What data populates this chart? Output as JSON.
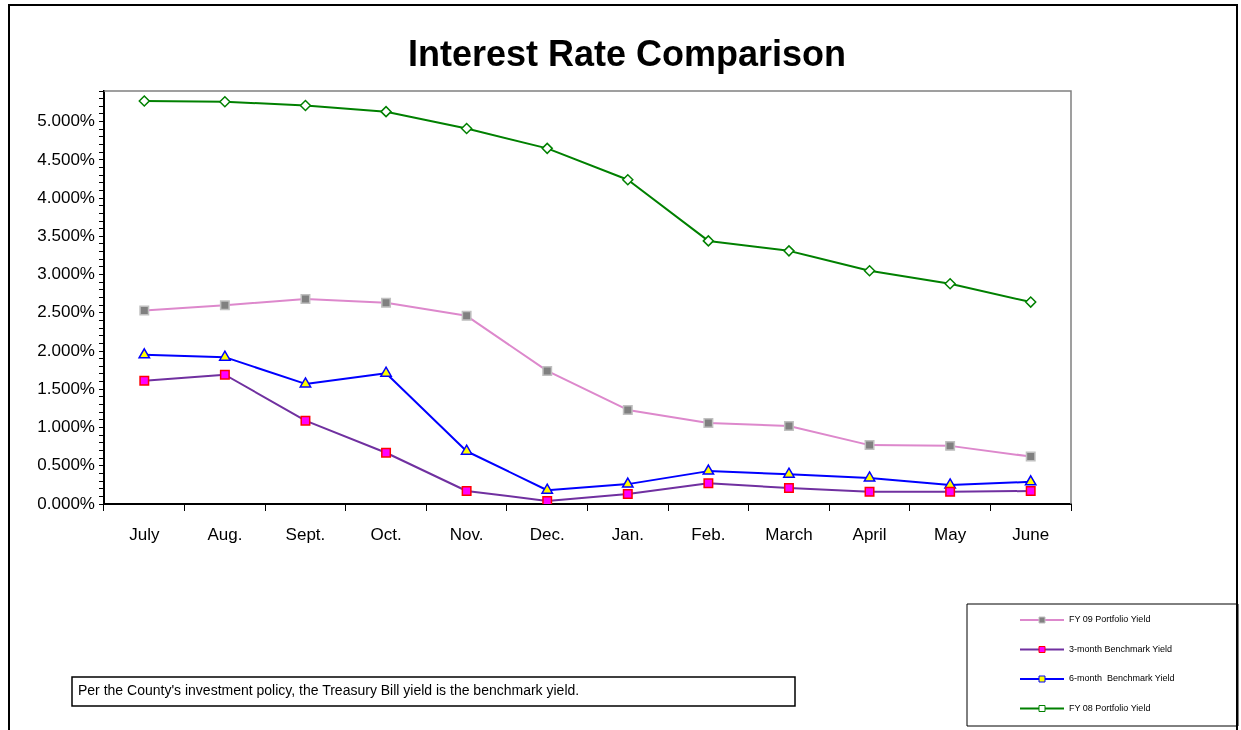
{
  "chart_data": {
    "type": "line",
    "title": "Interest Rate Comparison",
    "categories": [
      "July",
      "Aug.",
      "Sept.",
      "Oct.",
      "Nov.",
      "Dec.",
      "Jan.",
      "Feb.",
      "March",
      "April",
      "May",
      "June"
    ],
    "series": [
      {
        "name": "FY 09 Portfolio Yield",
        "color": "#dd88cc",
        "marker": "square",
        "values": [
          2.53,
          2.6,
          2.68,
          2.63,
          2.46,
          1.74,
          1.23,
          1.06,
          1.02,
          0.77,
          0.76,
          0.62
        ]
      },
      {
        "name": "3-month Benchmark Yield",
        "color": "#7030a0",
        "marker": "square",
        "values": [
          1.61,
          1.69,
          1.09,
          0.67,
          0.17,
          0.04,
          0.13,
          0.27,
          0.21,
          0.16,
          0.16,
          0.17
        ]
      },
      {
        "name": "6-month  Benchmark Yield",
        "color": "#0000ff",
        "marker": "triangle",
        "values": [
          1.95,
          1.92,
          1.57,
          1.71,
          0.69,
          0.18,
          0.26,
          0.43,
          0.39,
          0.34,
          0.25,
          0.29
        ]
      },
      {
        "name": "FY 08 Portfolio Yield",
        "color": "#008000",
        "marker": "diamond",
        "values": [
          5.27,
          5.26,
          5.21,
          5.13,
          4.91,
          4.65,
          4.24,
          3.44,
          3.31,
          3.05,
          2.88,
          2.64
        ]
      }
    ],
    "ylim": [
      0,
      5.4
    ],
    "yticks": [
      {
        "value": 0,
        "label": "0.000%"
      },
      {
        "value": 0.1,
        "label": null
      },
      {
        "value": 0.2,
        "label": null
      },
      {
        "value": 0.3,
        "label": null
      },
      {
        "value": 0.4,
        "label": null
      },
      {
        "value": 0.5,
        "label": "0.500%"
      },
      {
        "value": 0.6,
        "label": null
      },
      {
        "value": 0.7,
        "label": null
      },
      {
        "value": 0.8,
        "label": null
      },
      {
        "value": 0.9,
        "label": null
      },
      {
        "value": 1,
        "label": "1.000%"
      },
      {
        "value": 1.1,
        "label": null
      },
      {
        "value": 1.2,
        "label": null
      },
      {
        "value": 1.3,
        "label": null
      },
      {
        "value": 1.4,
        "label": null
      },
      {
        "value": 1.5,
        "label": "1.500%"
      },
      {
        "value": 1.6,
        "label": null
      },
      {
        "value": 1.7,
        "label": null
      },
      {
        "value": 1.8,
        "label": null
      },
      {
        "value": 1.9,
        "label": null
      },
      {
        "value": 2,
        "label": "2.000%"
      },
      {
        "value": 2.1,
        "label": null
      },
      {
        "value": 2.2,
        "label": null
      },
      {
        "value": 2.3,
        "label": null
      },
      {
        "value": 2.4,
        "label": null
      },
      {
        "value": 2.5,
        "label": "2.500%"
      },
      {
        "value": 2.6,
        "label": null
      },
      {
        "value": 2.7,
        "label": null
      },
      {
        "value": 2.8,
        "label": null
      },
      {
        "value": 2.9,
        "label": null
      },
      {
        "value": 3,
        "label": "3.000%"
      },
      {
        "value": 3.1,
        "label": null
      },
      {
        "value": 3.2,
        "label": null
      },
      {
        "value": 3.3,
        "label": null
      },
      {
        "value": 3.4,
        "label": null
      },
      {
        "value": 3.5,
        "label": "3.500%"
      },
      {
        "value": 3.6,
        "label": null
      },
      {
        "value": 3.7,
        "label": null
      },
      {
        "value": 3.8,
        "label": null
      },
      {
        "value": 3.9,
        "label": null
      },
      {
        "value": 4,
        "label": "4.000%"
      },
      {
        "value": 4.1,
        "label": null
      },
      {
        "value": 4.2,
        "label": null
      },
      {
        "value": 4.3,
        "label": null
      },
      {
        "value": 4.4,
        "label": null
      },
      {
        "value": 4.5,
        "label": "4.500%"
      },
      {
        "value": 4.6,
        "label": null
      },
      {
        "value": 4.7,
        "label": null
      },
      {
        "value": 4.8,
        "label": null
      },
      {
        "value": 4.9,
        "label": null
      },
      {
        "value": 5,
        "label": "5.000%"
      },
      {
        "value": 5.1,
        "label": null
      },
      {
        "value": 5.2,
        "label": null
      },
      {
        "value": 5.3,
        "label": null
      },
      {
        "value": 5.4,
        "label": null
      }
    ],
    "grid": false,
    "legend": "bottom right",
    "annotations": [
      "Per the County's investment policy, the Treasury Bill yield is the benchmark yield."
    ]
  }
}
